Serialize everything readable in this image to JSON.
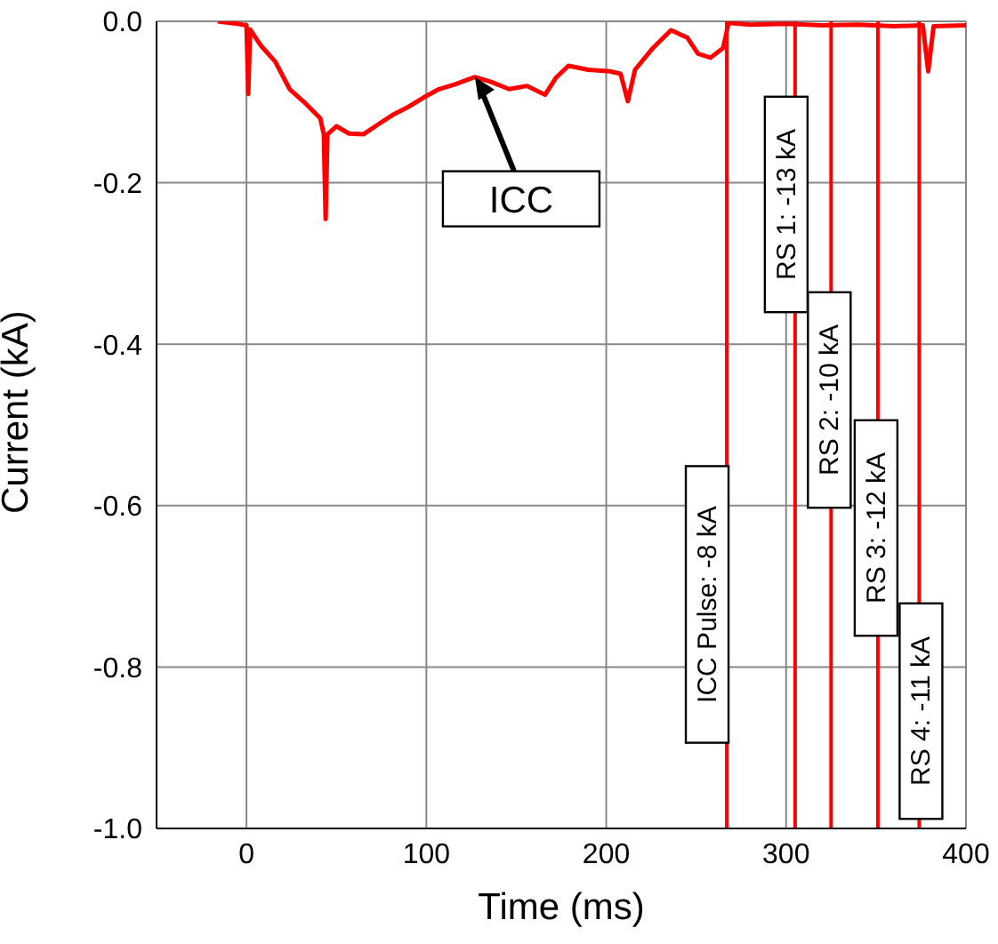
{
  "chart_data": {
    "type": "line",
    "xlabel": "Time (ms)",
    "ylabel": "Current (kA)",
    "x": [
      -16,
      -5,
      0,
      1,
      2,
      8,
      16,
      24,
      32,
      41,
      43,
      44,
      45,
      50,
      57,
      65,
      73,
      82,
      90,
      98,
      107,
      116,
      127,
      136,
      146,
      156,
      166,
      172,
      179,
      190,
      202,
      208,
      212,
      216,
      226,
      236,
      245,
      251,
      258,
      265,
      268,
      280,
      300,
      320,
      340,
      360,
      376,
      379,
      382,
      400
    ],
    "series": [
      {
        "color": "#ff0000",
        "values": [
          0,
          -0.003,
          -0.005,
          -0.09,
          -0.01,
          -0.03,
          -0.05,
          -0.084,
          -0.1,
          -0.12,
          -0.14,
          -0.245,
          -0.14,
          -0.13,
          -0.139,
          -0.14,
          -0.128,
          -0.115,
          -0.106,
          -0.095,
          -0.084,
          -0.078,
          -0.069,
          -0.075,
          -0.084,
          -0.08,
          -0.091,
          -0.07,
          -0.055,
          -0.06,
          -0.062,
          -0.065,
          -0.099,
          -0.06,
          -0.033,
          -0.011,
          -0.02,
          -0.04,
          -0.045,
          -0.033,
          -0.002,
          -0.004,
          -0.003,
          -0.005,
          -0.004,
          -0.006,
          -0.005,
          -0.062,
          -0.006,
          -0.005
        ]
      }
    ],
    "xlim": [
      -50,
      400
    ],
    "xticks": [
      0,
      100,
      200,
      300,
      400
    ],
    "ylim": [
      -1,
      0
    ],
    "yticks": [
      {
        "value": -1,
        "label": "-1.0"
      },
      {
        "value": -0.8,
        "label": "-0.8"
      },
      {
        "value": -0.6,
        "label": "-0.6"
      },
      {
        "value": -0.4,
        "label": "-0.4"
      },
      {
        "value": -0.2,
        "label": "-0.2"
      },
      {
        "value": 0,
        "label": "0.0"
      }
    ],
    "grid": true,
    "marker": "none",
    "line_style": "solid",
    "ref_lines": [
      {
        "axis": "x",
        "value": 267,
        "color": "#ff0000"
      },
      {
        "axis": "x",
        "value": 305,
        "color": "#ff0000"
      },
      {
        "axis": "x",
        "value": 325,
        "color": "#ff0000"
      },
      {
        "axis": "x",
        "value": 351,
        "color": "#ff0000"
      },
      {
        "axis": "x",
        "value": 374,
        "color": "#ff0000"
      }
    ],
    "annotations": [
      {
        "text": "ICC",
        "x": 127,
        "y": -0.069
      },
      {
        "text": "ICC Pulse: -8 kA",
        "x": 267
      },
      {
        "text": "RS 1: -13 kA",
        "x": 305
      },
      {
        "text": "RS 2: -10 kA",
        "x": 325
      },
      {
        "text": "RS 3: -12 kA",
        "x": 351
      },
      {
        "text": "RS 4: -11 kA",
        "x": 374
      }
    ]
  }
}
